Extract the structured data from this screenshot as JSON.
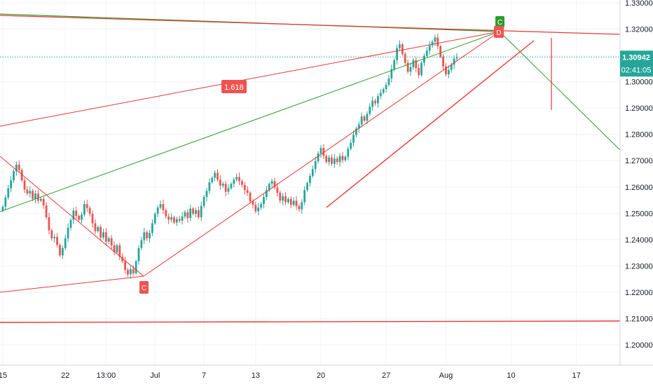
{
  "chart_data": {
    "type": "candlestick",
    "title": "",
    "xlabel": "",
    "ylabel": "",
    "ylim": [
      1.1938,
      1.3339
    ],
    "y_ticks": [
      "1.20000",
      "1.21000",
      "1.22000",
      "1.23000",
      "1.24000",
      "1.25000",
      "1.26000",
      "1.27000",
      "1.28000",
      "1.29000",
      "1.30000",
      "1.31000",
      "1.32000",
      "1.33000"
    ],
    "x_ticks": [
      {
        "label": "15",
        "slot": 0
      },
      {
        "label": "22",
        "slot": 23
      },
      {
        "label": "13:00",
        "slot": 38
      },
      {
        "label": "Jul",
        "slot": 56
      },
      {
        "label": "7",
        "slot": 74
      },
      {
        "label": "13",
        "slot": 93
      },
      {
        "label": "20",
        "slot": 117
      },
      {
        "label": "27",
        "slot": 141
      },
      {
        "label": "Aug",
        "slot": 163
      },
      {
        "label": "10",
        "slot": 187
      },
      {
        "label": "17",
        "slot": 211
      }
    ],
    "grid": true,
    "colors": {
      "up": "#26a69a",
      "down": "#ef5350",
      "grid": "#f0f3fa",
      "axis_text": "#131722",
      "pattern_red": "#e53935",
      "pattern_green": "#2e9d2e",
      "price_line": "#26a69a"
    },
    "price_label": {
      "value": "1.30942",
      "timer": "02:41:05"
    },
    "closes": [
      1.2525,
      1.256,
      1.2595,
      1.2625,
      1.266,
      1.2685,
      1.2665,
      1.2625,
      1.259,
      1.2575,
      1.2585,
      1.2555,
      1.2575,
      1.2548,
      1.2555,
      1.253,
      1.2485,
      1.2435,
      1.2405,
      1.241,
      1.238,
      1.234,
      1.2368,
      1.2405,
      1.2445,
      1.2475,
      1.251,
      1.249,
      1.2475,
      1.2495,
      1.2535,
      1.252,
      1.2498,
      1.2462,
      1.2432,
      1.2448,
      1.2408,
      1.2428,
      1.2392,
      1.2405,
      1.2378,
      1.2352,
      1.2378,
      1.2335,
      1.2318,
      1.2285,
      1.2268,
      1.2288,
      1.2272,
      1.2318,
      1.2368,
      1.2398,
      1.2428,
      1.2405,
      1.2425,
      1.2462,
      1.2498,
      1.2522,
      1.2535,
      1.2512,
      1.2488,
      1.2476,
      1.2485,
      1.2465,
      1.2478,
      1.2472,
      1.2488,
      1.2504,
      1.2482,
      1.2518,
      1.2498,
      1.2512,
      1.2485,
      1.2528,
      1.2562,
      1.2585,
      1.2618,
      1.2635,
      1.2654,
      1.2628,
      1.2605,
      1.2612,
      1.2582,
      1.2595,
      1.2612,
      1.2628,
      1.2638,
      1.2622,
      1.2608,
      1.2588,
      1.2578,
      1.2545,
      1.2532,
      1.2508,
      1.2522,
      1.2535,
      1.2562,
      1.2588,
      1.2612,
      1.2622,
      1.2598,
      1.2578,
      1.2548,
      1.2565,
      1.2542,
      1.2555,
      1.2532,
      1.2548,
      1.2528,
      1.2515,
      1.2542,
      1.2588,
      1.2615,
      1.2642,
      1.2668,
      1.2698,
      1.2728,
      1.2748,
      1.2718,
      1.2695,
      1.2712,
      1.2688,
      1.2708,
      1.2695,
      1.2718,
      1.2702,
      1.2715,
      1.2745,
      1.2768,
      1.2798,
      1.2822,
      1.2838,
      1.2868,
      1.2852,
      1.2878,
      1.2905,
      1.2928,
      1.2918,
      1.2945,
      1.2958,
      1.2972,
      1.2988,
      1.3012,
      1.3048,
      1.3082,
      1.3128,
      1.3142,
      1.3105,
      1.3072,
      1.3038,
      1.3055,
      1.3082,
      1.3052,
      1.3025,
      1.3072,
      1.3098,
      1.3118,
      1.3138,
      1.3152,
      1.3168,
      1.3135,
      1.3095,
      1.3058,
      1.3028,
      1.3045,
      1.3065,
      1.3088,
      1.3094
    ]
  },
  "annotations": {
    "label_fib": "1.618",
    "label_point_c_bottom": "C",
    "label_point_c_top": "C",
    "label_point_d": "D"
  }
}
